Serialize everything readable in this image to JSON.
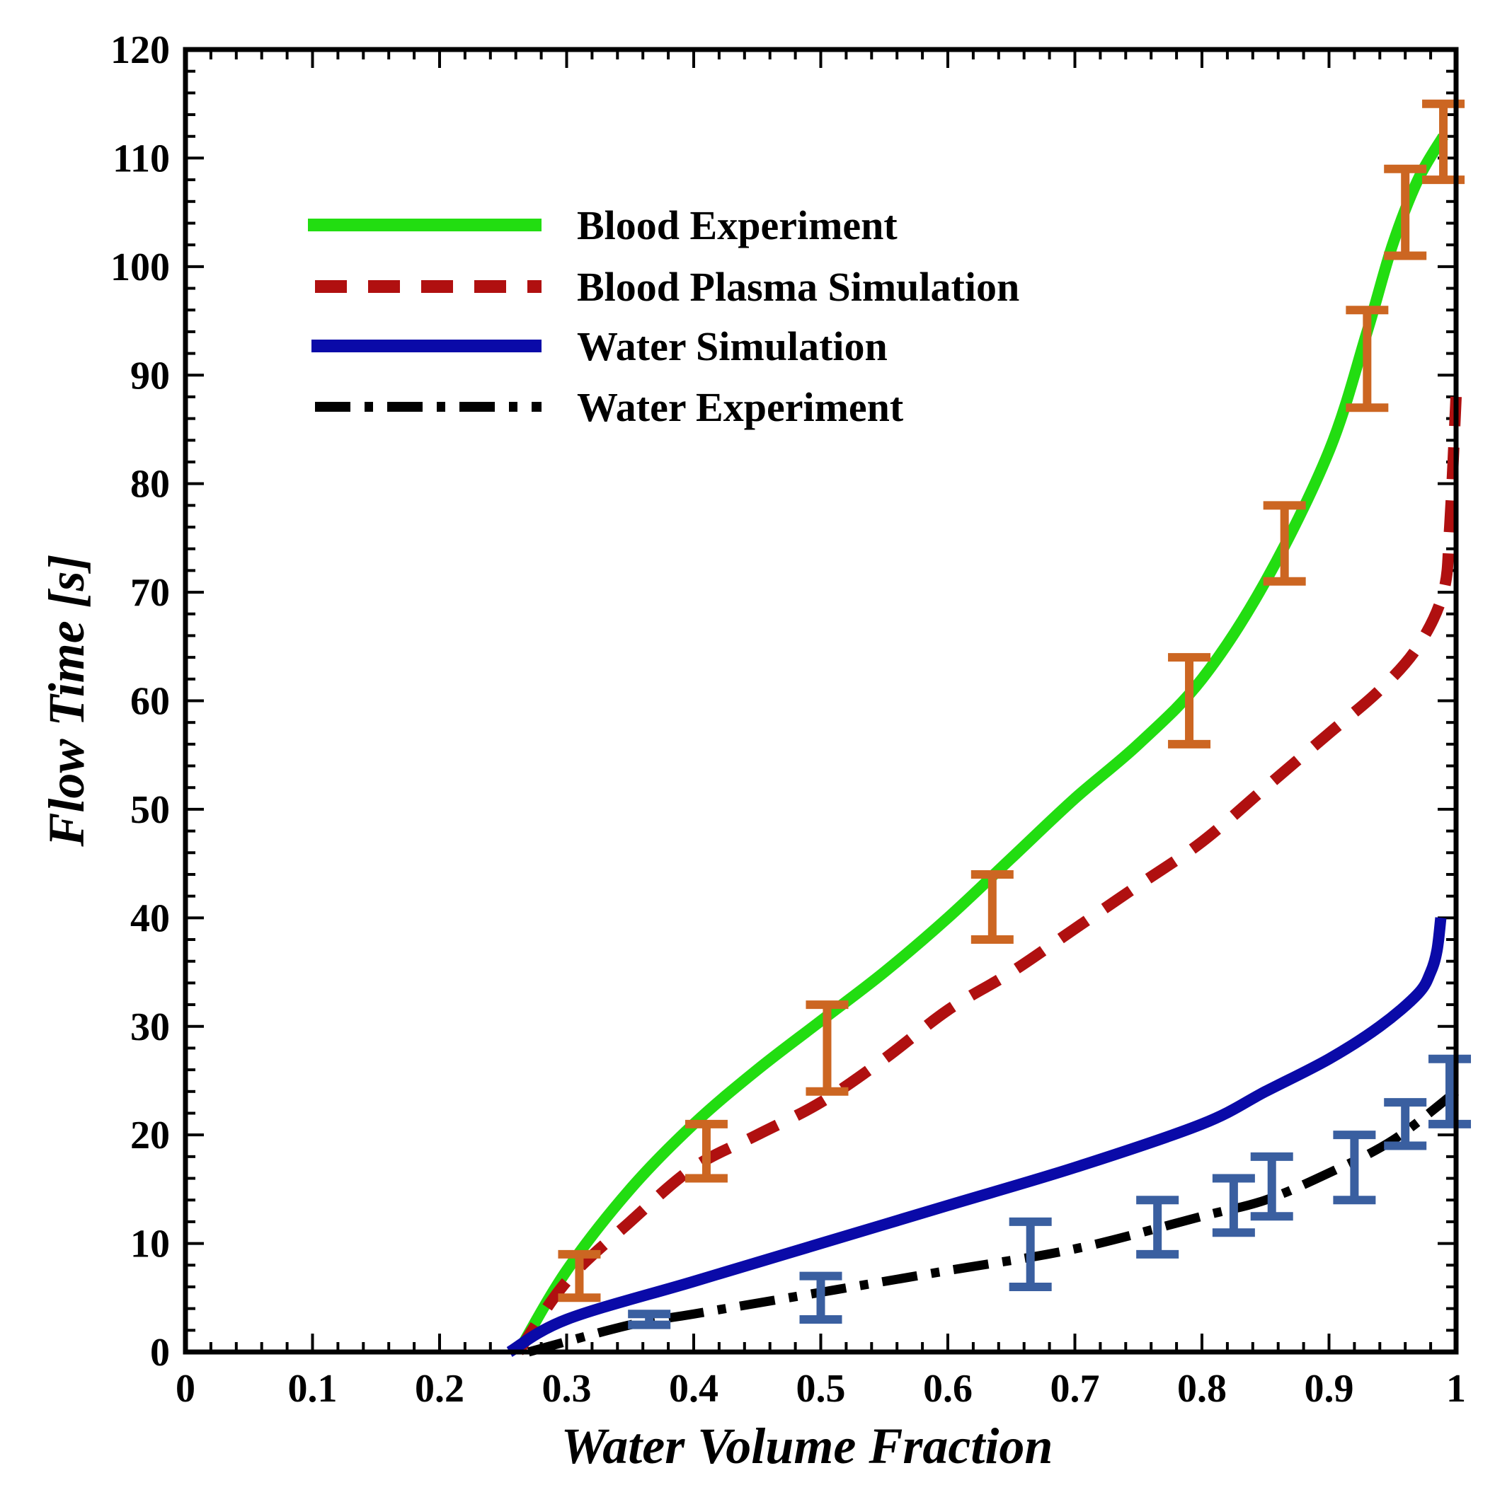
{
  "chart_data": {
    "type": "line",
    "title": "",
    "xlabel": "Water Volume Fraction",
    "ylabel": "Flow Time [s]",
    "xlim": [
      0,
      1
    ],
    "ylim": [
      0,
      120
    ],
    "x_ticks": [
      0,
      0.1,
      0.2,
      0.3,
      0.4,
      0.5,
      0.6,
      0.7,
      0.8,
      0.9,
      1
    ],
    "x_tick_labels": [
      "0",
      "0.1",
      "0.2",
      "0.3",
      "0.4",
      "0.5",
      "0.6",
      "0.7",
      "0.8",
      "0.9",
      "1"
    ],
    "y_ticks": [
      0,
      10,
      20,
      30,
      40,
      50,
      60,
      70,
      80,
      90,
      100,
      110,
      120
    ],
    "y_tick_labels": [
      "0",
      "10",
      "20",
      "30",
      "40",
      "50",
      "60",
      "70",
      "80",
      "90",
      "100",
      "110",
      "120"
    ],
    "legend_position": "top-left",
    "series": [
      {
        "name": "Blood Experiment",
        "color": "#22dd11",
        "style": "solid",
        "x": [
          0.262,
          0.3,
          0.35,
          0.4,
          0.45,
          0.5,
          0.55,
          0.6,
          0.65,
          0.7,
          0.75,
          0.8,
          0.85,
          0.9,
          0.93,
          0.95,
          0.97,
          0.99
        ],
        "y": [
          0,
          7.5,
          15,
          21,
          26,
          30.5,
          35,
          40,
          45.5,
          51,
          56,
          62,
          71,
          83,
          94,
          102,
          108,
          112
        ]
      },
      {
        "name": "Blood Plasma Simulation",
        "color": "#b01010",
        "style": "dashed",
        "x": [
          0.262,
          0.3,
          0.35,
          0.4,
          0.45,
          0.5,
          0.55,
          0.6,
          0.65,
          0.7,
          0.75,
          0.8,
          0.85,
          0.9,
          0.94,
          0.97,
          0.99,
          0.995,
          1.0
        ],
        "y": [
          0,
          6.5,
          12,
          17,
          20,
          23,
          27,
          31.5,
          35,
          39,
          43,
          47,
          52,
          57,
          61,
          65,
          70,
          76,
          88
        ]
      },
      {
        "name": "Water Simulation",
        "color": "#0a0aa8",
        "style": "solid",
        "x": [
          0.255,
          0.3,
          0.4,
          0.5,
          0.6,
          0.7,
          0.8,
          0.85,
          0.9,
          0.94,
          0.97,
          0.98,
          0.985,
          0.988
        ],
        "y": [
          0,
          3,
          6.5,
          10,
          13.5,
          17,
          21,
          24,
          27,
          30,
          33,
          35,
          37,
          40
        ]
      },
      {
        "name": "Water Experiment",
        "color": "#000000",
        "style": "dashdot",
        "x": [
          0.27,
          0.35,
          0.4,
          0.5,
          0.6,
          0.7,
          0.8,
          0.85,
          0.9,
          0.95,
          1.0
        ],
        "y": [
          0,
          2.5,
          3.5,
          5.5,
          7.5,
          9.5,
          12.5,
          14,
          16.5,
          19.5,
          24
        ]
      }
    ],
    "error_bars": [
      {
        "name": "Blood Experiment error bars",
        "color": "#cc6622",
        "points": [
          {
            "x": 0.31,
            "y": 7,
            "ylow": 5,
            "yhigh": 9
          },
          {
            "x": 0.41,
            "y": 18.5,
            "ylow": 16,
            "yhigh": 21
          },
          {
            "x": 0.505,
            "y": 28,
            "ylow": 24,
            "yhigh": 32
          },
          {
            "x": 0.635,
            "y": 41,
            "ylow": 38,
            "yhigh": 44
          },
          {
            "x": 0.79,
            "y": 60,
            "ylow": 56,
            "yhigh": 64
          },
          {
            "x": 0.865,
            "y": 74.5,
            "ylow": 71,
            "yhigh": 78
          },
          {
            "x": 0.93,
            "y": 91.5,
            "ylow": 87,
            "yhigh": 96
          },
          {
            "x": 0.96,
            "y": 105,
            "ylow": 101,
            "yhigh": 109
          },
          {
            "x": 0.99,
            "y": 111.5,
            "ylow": 108,
            "yhigh": 115
          }
        ]
      },
      {
        "name": "Water Experiment error bars",
        "color": "#3a5fa0",
        "points": [
          {
            "x": 0.365,
            "y": 3,
            "ylow": 2.5,
            "yhigh": 3.5
          },
          {
            "x": 0.5,
            "y": 5,
            "ylow": 3,
            "yhigh": 7
          },
          {
            "x": 0.665,
            "y": 9,
            "ylow": 6,
            "yhigh": 12
          },
          {
            "x": 0.765,
            "y": 11.5,
            "ylow": 9,
            "yhigh": 14
          },
          {
            "x": 0.825,
            "y": 13.5,
            "ylow": 11,
            "yhigh": 16
          },
          {
            "x": 0.855,
            "y": 15,
            "ylow": 12.5,
            "yhigh": 18
          },
          {
            "x": 0.92,
            "y": 16.5,
            "ylow": 14,
            "yhigh": 20
          },
          {
            "x": 0.96,
            "y": 21,
            "ylow": 19,
            "yhigh": 23
          },
          {
            "x": 0.995,
            "y": 24,
            "ylow": 21,
            "yhigh": 27
          }
        ]
      }
    ]
  }
}
